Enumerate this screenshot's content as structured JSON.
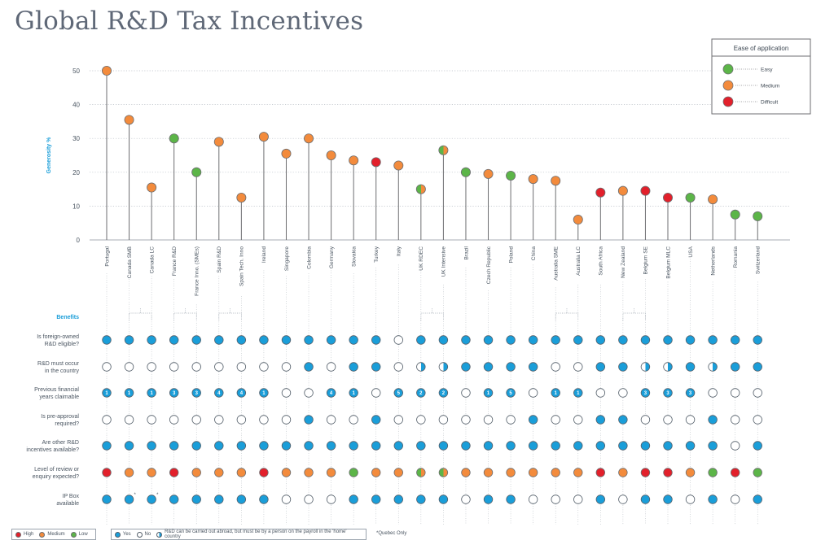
{
  "title": "Global R&D Tax Incentives",
  "legend": {
    "title": "Ease of application",
    "items": [
      {
        "label": "Easy",
        "level": "easy"
      },
      {
        "label": "Medium",
        "level": "medium"
      },
      {
        "label": "Difficult",
        "level": "difficult"
      }
    ]
  },
  "colors": {
    "easy": "#5cb548",
    "medium": "#f38b3c",
    "difficult": "#e2202b",
    "yes": "#1a9ed9",
    "no": "#ffffff",
    "axis_label": "#1a9ed9",
    "title": "#5f6877",
    "stem": "#6d6e71"
  },
  "chart_data": {
    "type": "scatter",
    "ylabel": "Generosity %",
    "ylim": [
      0,
      50
    ],
    "yticks": [
      0,
      10,
      20,
      30,
      40,
      50
    ],
    "grid": true,
    "legend_placement": "top-right",
    "points": [
      {
        "label": "Portugal",
        "value": 50,
        "ease": "medium"
      },
      {
        "label": "Canada SMB",
        "value": 35.5,
        "ease": "medium"
      },
      {
        "label": "Canada LC",
        "value": 15.5,
        "ease": "medium"
      },
      {
        "label": "France R&D",
        "value": 30,
        "ease": "easy"
      },
      {
        "label": "France Inno. (SMEs)",
        "value": 20,
        "ease": "easy"
      },
      {
        "label": "Spain R&D",
        "value": 29,
        "ease": "medium"
      },
      {
        "label": "Spain Tech. Inno",
        "value": 12.5,
        "ease": "medium"
      },
      {
        "label": "Ireland",
        "value": 30.5,
        "ease": "medium"
      },
      {
        "label": "Singapore",
        "value": 25.5,
        "ease": "medium"
      },
      {
        "label": "Colombia",
        "value": 30,
        "ease": "medium"
      },
      {
        "label": "Germany",
        "value": 25,
        "ease": "medium"
      },
      {
        "label": "Slovakia",
        "value": 23.5,
        "ease": "medium"
      },
      {
        "label": "Turkey",
        "value": 23,
        "ease": "difficult"
      },
      {
        "label": "Italy",
        "value": 22,
        "ease": "medium"
      },
      {
        "label": "UK RDEC",
        "value": 15,
        "ease": "easy-medium"
      },
      {
        "label": "UK Intensive",
        "value": 26.5,
        "ease": "easy-medium"
      },
      {
        "label": "Brazil",
        "value": 20,
        "ease": "easy"
      },
      {
        "label": "Czech Republic",
        "value": 19.5,
        "ease": "medium"
      },
      {
        "label": "Poland",
        "value": 19,
        "ease": "easy"
      },
      {
        "label": "China",
        "value": 18,
        "ease": "medium"
      },
      {
        "label": "Australia SME",
        "value": 17.5,
        "ease": "medium"
      },
      {
        "label": "Australia LC",
        "value": 6,
        "ease": "medium"
      },
      {
        "label": "South Africa",
        "value": 14,
        "ease": "difficult"
      },
      {
        "label": "New Zealand",
        "value": 14.5,
        "ease": "medium"
      },
      {
        "label": "Belgium SE",
        "value": 14.5,
        "ease": "difficult"
      },
      {
        "label": "Belgium MLC",
        "value": 12.5,
        "ease": "difficult"
      },
      {
        "label": "USA",
        "value": 12.5,
        "ease": "easy"
      },
      {
        "label": "Netherlands",
        "value": 12,
        "ease": "medium"
      },
      {
        "label": "Romania",
        "value": 7.5,
        "ease": "easy"
      },
      {
        "label": "Switzerland",
        "value": 7,
        "ease": "easy"
      }
    ],
    "groups": [
      {
        "from": 1,
        "to": 2
      },
      {
        "from": 3,
        "to": 4
      },
      {
        "from": 5,
        "to": 6
      },
      {
        "from": 14,
        "to": 15
      },
      {
        "from": 20,
        "to": 21
      },
      {
        "from": 23,
        "to": 24
      }
    ],
    "benefits_header": "Benefits",
    "matrix": [
      {
        "question": [
          "Is foreign-owned",
          "R&D eligible?"
        ],
        "cells": [
          "y",
          "y",
          "y",
          "y",
          "y",
          "y",
          "y",
          "y",
          "y",
          "y",
          "y",
          "y",
          "y",
          "n",
          "y",
          "y",
          "y",
          "y",
          "y",
          "y",
          "y",
          "y",
          "y",
          "y",
          "y",
          "y",
          "y",
          "y",
          "y",
          "y"
        ]
      },
      {
        "question": [
          "R&D must occur",
          "in the country"
        ],
        "cells": [
          "n",
          "n",
          "n",
          "n",
          "n",
          "n",
          "n",
          "n",
          "n",
          "y",
          "n",
          "y",
          "y",
          "n",
          "h",
          "h",
          "y",
          "y",
          "y",
          "y",
          "n",
          "n",
          "y",
          "y",
          "h",
          "h",
          "y",
          "h",
          "y",
          "y"
        ]
      },
      {
        "question": [
          "Previous financial",
          "years claimable"
        ],
        "cells": [
          "1",
          "1",
          "1",
          "3",
          "3",
          "4",
          "4",
          "1",
          "n",
          "n",
          "4",
          "1",
          "n",
          "5",
          "2",
          "2",
          "n",
          "1",
          "5",
          "n",
          "1",
          "1",
          "n",
          "n",
          "3",
          "3",
          "3",
          "n",
          "n",
          "n"
        ]
      },
      {
        "question": [
          "Is pre-approval",
          "required?"
        ],
        "cells": [
          "n",
          "n",
          "n",
          "n",
          "n",
          "n",
          "n",
          "n",
          "n",
          "y",
          "n",
          "n",
          "y",
          "n",
          "n",
          "n",
          "n",
          "n",
          "n",
          "y",
          "n",
          "n",
          "y",
          "y",
          "n",
          "n",
          "n",
          "y",
          "n",
          "n"
        ]
      },
      {
        "question": [
          "Are other R&D",
          "incentives available?"
        ],
        "cells": [
          "y",
          "y",
          "y",
          "y",
          "y",
          "y",
          "y",
          "y",
          "y",
          "y",
          "y",
          "y",
          "y",
          "y",
          "y",
          "y",
          "y",
          "y",
          "y",
          "y",
          "y",
          "y",
          "y",
          "y",
          "y",
          "y",
          "y",
          "y",
          "n",
          "y"
        ]
      },
      {
        "question": [
          "Level of review or",
          "enquiry expected?"
        ],
        "cells": [
          "H",
          "M",
          "M",
          "H",
          "M",
          "M",
          "M",
          "H",
          "M",
          "M",
          "M",
          "L",
          "M",
          "M",
          "LM",
          "LM",
          "M",
          "M",
          "M",
          "M",
          "M",
          "M",
          "H",
          "M",
          "H",
          "H",
          "M",
          "L",
          "H",
          "L"
        ]
      },
      {
        "question": [
          "IP Box",
          "available"
        ],
        "cells": [
          "y",
          "y*",
          "y*",
          "y",
          "y",
          "y",
          "y",
          "y",
          "n",
          "n",
          "n",
          "y",
          "y",
          "y",
          "y",
          "y",
          "n",
          "y",
          "y",
          "n",
          "n",
          "n",
          "y",
          "n",
          "y",
          "y",
          "n",
          "y",
          "n",
          "y"
        ]
      }
    ]
  },
  "footer": {
    "review_levels": [
      {
        "label": "High",
        "level": "high"
      },
      {
        "label": "Medium",
        "level": "medium"
      },
      {
        "label": "Low",
        "level": "low"
      }
    ],
    "yes_label": "Yes",
    "no_label": "No",
    "half_label": "R&D can be carried out abroad, but must be by a person on the payroll in the 'home' country",
    "note": "*Quebec Only"
  }
}
